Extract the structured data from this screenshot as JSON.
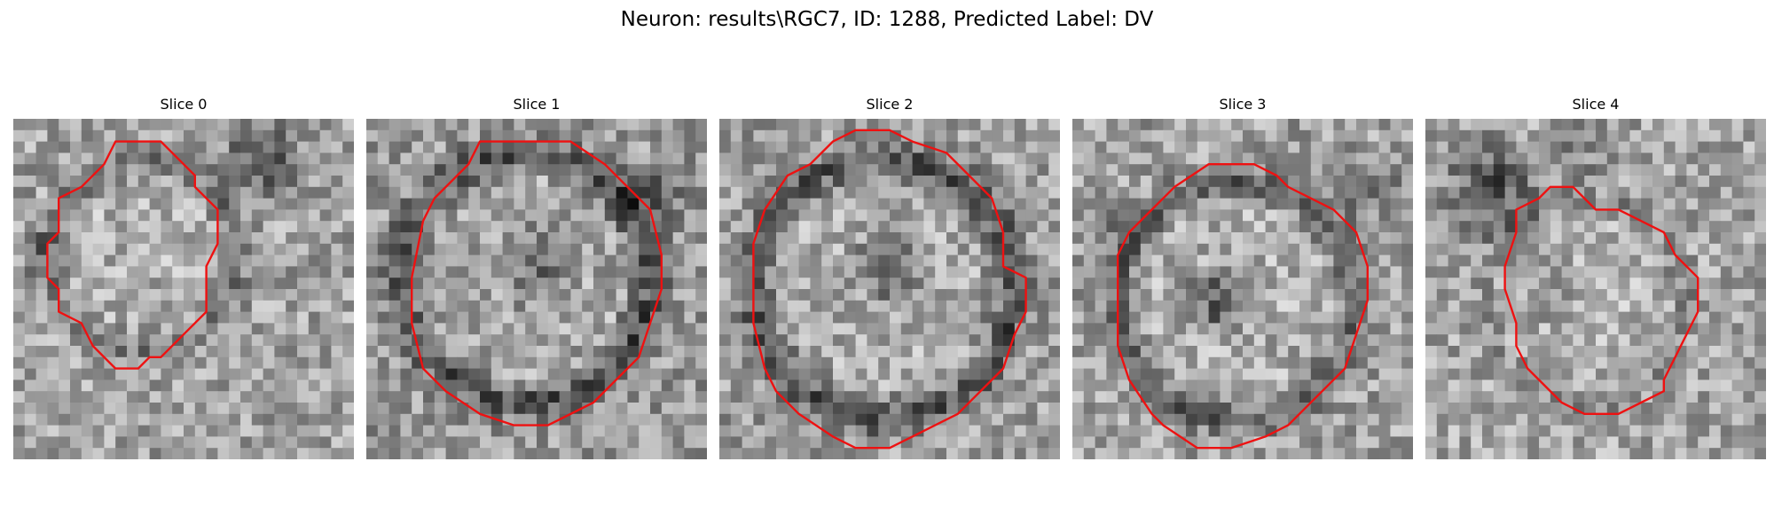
{
  "figure": {
    "title": "Neuron: results\\RGC7, ID: 1288, Predicted Label: DV"
  },
  "colors": {
    "outline": "#ee1111",
    "background": "#ffffff"
  },
  "image_grid": {
    "cells": 30
  },
  "slices": [
    {
      "title": "Slice 0",
      "seed": 11,
      "bias": 0.04,
      "contour_style": "roi outline"
    },
    {
      "title": "Slice 1",
      "seed": 23,
      "bias": 0.0,
      "contour_style": "roi outline"
    },
    {
      "title": "Slice 2",
      "seed": 37,
      "bias": 0.02,
      "contour_style": "roi outline"
    },
    {
      "title": "Slice 3",
      "seed": 41,
      "bias": 0.03,
      "contour_style": "roi outline"
    },
    {
      "title": "Slice 4",
      "seed": 59,
      "bias": 0.05,
      "contour_style": "roi outline"
    }
  ]
}
